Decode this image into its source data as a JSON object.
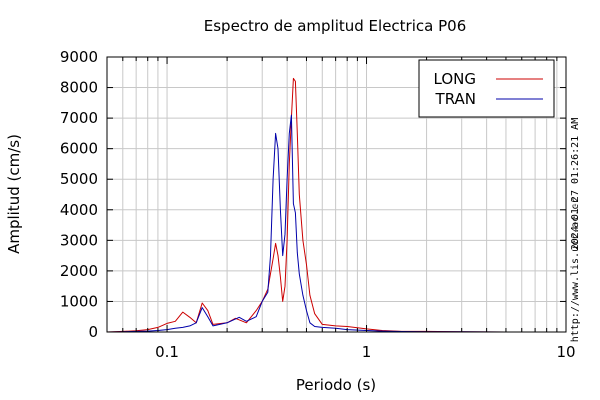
{
  "chart_data": {
    "type": "line",
    "title": "Espectro de amplitud Electrica P06",
    "xlabel": "Periodo (s)",
    "ylabel": "Amplitud (cm/s)",
    "x_scale": "log",
    "xlim": [
      0.05,
      10
    ],
    "ylim": [
      0,
      9000
    ],
    "x_tick_labels": [
      "0.1",
      "1",
      "10"
    ],
    "y_tick_labels": [
      "0",
      "1000",
      "2000",
      "3000",
      "4000",
      "5000",
      "6000",
      "7000",
      "8000",
      "9000"
    ],
    "grid": true,
    "legend_position": "top-right",
    "series": [
      {
        "name": "LONG",
        "color": "#cc0000",
        "points": [
          [
            0.05,
            0
          ],
          [
            0.06,
            20
          ],
          [
            0.07,
            40
          ],
          [
            0.08,
            80
          ],
          [
            0.09,
            150
          ],
          [
            0.1,
            280
          ],
          [
            0.11,
            350
          ],
          [
            0.12,
            650
          ],
          [
            0.13,
            480
          ],
          [
            0.14,
            300
          ],
          [
            0.15,
            950
          ],
          [
            0.16,
            700
          ],
          [
            0.17,
            250
          ],
          [
            0.2,
            300
          ],
          [
            0.22,
            450
          ],
          [
            0.25,
            300
          ],
          [
            0.28,
            700
          ],
          [
            0.3,
            1000
          ],
          [
            0.32,
            1400
          ],
          [
            0.34,
            2400
          ],
          [
            0.35,
            2900
          ],
          [
            0.36,
            2500
          ],
          [
            0.37,
            1800
          ],
          [
            0.38,
            1000
          ],
          [
            0.39,
            1500
          ],
          [
            0.4,
            3000
          ],
          [
            0.41,
            5500
          ],
          [
            0.42,
            7000
          ],
          [
            0.43,
            8300
          ],
          [
            0.44,
            8200
          ],
          [
            0.45,
            6500
          ],
          [
            0.46,
            4500
          ],
          [
            0.48,
            3000
          ],
          [
            0.5,
            2200
          ],
          [
            0.52,
            1200
          ],
          [
            0.55,
            600
          ],
          [
            0.6,
            250
          ],
          [
            0.7,
            200
          ],
          [
            0.8,
            180
          ],
          [
            1.0,
            100
          ],
          [
            1.2,
            50
          ],
          [
            1.5,
            20
          ],
          [
            2.0,
            20
          ],
          [
            3.0,
            5
          ],
          [
            5.0,
            0
          ],
          [
            10,
            0
          ]
        ]
      },
      {
        "name": "TRAN",
        "color": "#0000aa",
        "points": [
          [
            0.05,
            0
          ],
          [
            0.06,
            10
          ],
          [
            0.07,
            20
          ],
          [
            0.08,
            30
          ],
          [
            0.09,
            50
          ],
          [
            0.1,
            80
          ],
          [
            0.11,
            120
          ],
          [
            0.12,
            150
          ],
          [
            0.13,
            200
          ],
          [
            0.14,
            300
          ],
          [
            0.15,
            800
          ],
          [
            0.16,
            500
          ],
          [
            0.17,
            200
          ],
          [
            0.2,
            300
          ],
          [
            0.23,
            480
          ],
          [
            0.25,
            350
          ],
          [
            0.28,
            500
          ],
          [
            0.3,
            1000
          ],
          [
            0.32,
            1300
          ],
          [
            0.33,
            2500
          ],
          [
            0.34,
            5000
          ],
          [
            0.35,
            6500
          ],
          [
            0.36,
            6000
          ],
          [
            0.37,
            4000
          ],
          [
            0.38,
            2500
          ],
          [
            0.39,
            3200
          ],
          [
            0.4,
            5000
          ],
          [
            0.41,
            6500
          ],
          [
            0.42,
            7100
          ],
          [
            0.43,
            4200
          ],
          [
            0.44,
            3900
          ],
          [
            0.45,
            2600
          ],
          [
            0.46,
            1900
          ],
          [
            0.48,
            1200
          ],
          [
            0.5,
            700
          ],
          [
            0.52,
            300
          ],
          [
            0.55,
            180
          ],
          [
            0.6,
            150
          ],
          [
            0.7,
            120
          ],
          [
            0.8,
            80
          ],
          [
            1.0,
            50
          ],
          [
            1.2,
            30
          ],
          [
            1.5,
            15
          ],
          [
            2.0,
            10
          ],
          [
            3.0,
            5
          ],
          [
            5.0,
            0
          ],
          [
            10,
            0
          ]
        ]
      }
    ]
  },
  "side_labels": {
    "timestamp": "2024-01-27 01:26:21 AM",
    "url": "http://www.lis.ucr.ac.cr"
  }
}
